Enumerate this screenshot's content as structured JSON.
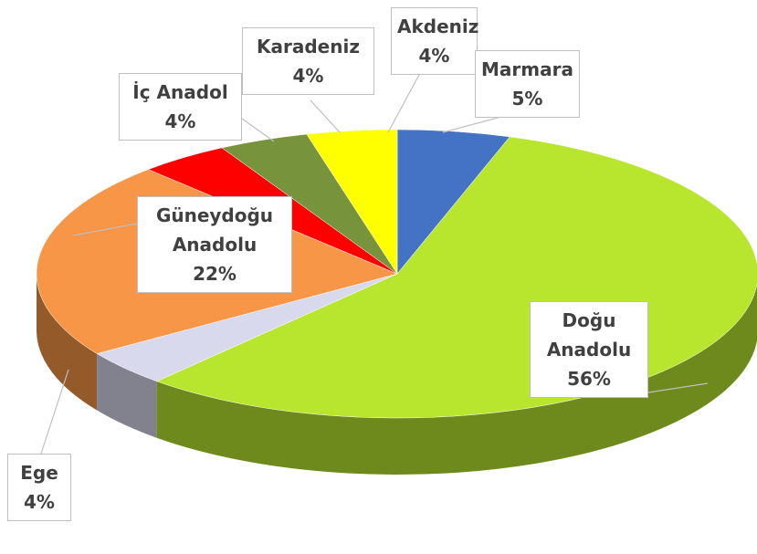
{
  "chart_data": {
    "type": "pie3d",
    "categories": [
      "Marmara",
      "Doğu Anadolu",
      "Ege",
      "Güneydoğu Anadolu",
      "İç Anadol",
      "Karadeniz",
      "Akdeniz"
    ],
    "values": [
      5,
      56,
      4,
      22,
      4,
      4,
      4
    ],
    "value_labels": [
      "5%",
      "56%",
      "4%",
      "22%",
      "4%",
      "4%",
      "4%"
    ],
    "colors": [
      "#4472c4",
      "#b8e62e",
      "#d9d9ee",
      "#f79646",
      "#ff0000",
      "#77933c",
      "#ffff00"
    ]
  }
}
